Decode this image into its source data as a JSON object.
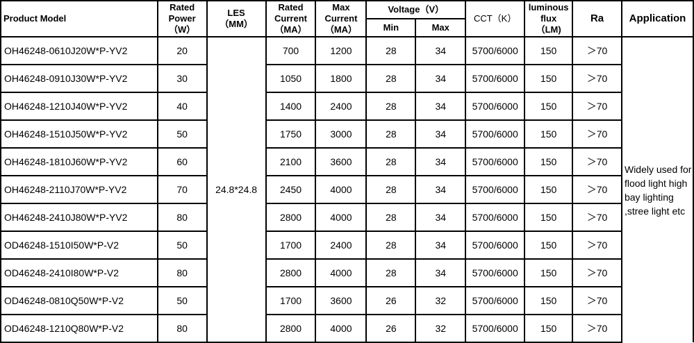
{
  "headers": {
    "model": "Product Model",
    "power": [
      "Rated",
      "Power",
      "（W）"
    ],
    "les": [
      "LES",
      "（MM）"
    ],
    "rated_current": [
      "Rated",
      "Current",
      "（MA）"
    ],
    "max_current": [
      "Max",
      "Current",
      "（MA）"
    ],
    "voltage": "Voltage（V）",
    "min": "Min",
    "max": "Max",
    "cct": "CCT（K）",
    "flux": [
      "luminous",
      "flux",
      "（LM)"
    ],
    "ra": "Ra",
    "application": "Application"
  },
  "les_value": "24.8*24.8",
  "application_text": "Widely used for flood light high bay lighting ,stree light etc",
  "rows": [
    [
      "OH46248-0610J20W*P-YV2",
      "20",
      "700",
      "1200",
      "28",
      "34",
      "5700/6000",
      "150",
      "＞70"
    ],
    [
      "OH46248-0910J30W*P-YV2",
      "30",
      "1050",
      "1800",
      "28",
      "34",
      "5700/6000",
      "150",
      "＞70"
    ],
    [
      "OH46248-1210J40W*P-YV2",
      "40",
      "1400",
      "2400",
      "28",
      "34",
      "5700/6000",
      "150",
      "＞70"
    ],
    [
      "OH46248-1510J50W*P-YV2",
      "50",
      "1750",
      "3000",
      "28",
      "34",
      "5700/6000",
      "150",
      "＞70"
    ],
    [
      "OH46248-1810J60W*P-YV2",
      "60",
      "2100",
      "3600",
      "28",
      "34",
      "5700/6000",
      "150",
      "＞70"
    ],
    [
      "OH46248-2110J70W*P-YV2",
      "70",
      "2450",
      "4000",
      "28",
      "34",
      "5700/6000",
      "150",
      "＞70"
    ],
    [
      "OH46248-2410J80W*P-YV2",
      "80",
      "2800",
      "4000",
      "28",
      "34",
      "5700/6000",
      "150",
      "＞70"
    ],
    [
      "OD46248-1510I50W*P-V2",
      "50",
      "1700",
      "2400",
      "28",
      "34",
      "5700/6000",
      "150",
      "＞70"
    ],
    [
      "OD46248-2410I80W*P-V2",
      "80",
      "2800",
      "4000",
      "28",
      "34",
      "5700/6000",
      "150",
      "＞70"
    ],
    [
      "OD46248-0810Q50W*P-V2",
      "50",
      "1700",
      "3600",
      "26",
      "32",
      "5700/6000",
      "150",
      "＞70"
    ],
    [
      "OD46248-1210Q80W*P-V2",
      "80",
      "2800",
      "4000",
      "26",
      "32",
      "5700/6000",
      "150",
      "＞70"
    ]
  ]
}
